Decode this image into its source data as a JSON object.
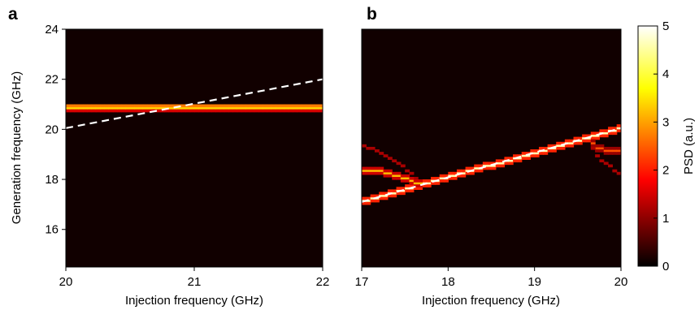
{
  "chart_data": [
    {
      "panel_label": "a",
      "type": "heatmap",
      "xlabel": "Injection frequency (GHz)",
      "ylabel": "Generation frequency (GHz)",
      "xlim": [
        20,
        22
      ],
      "ylim": [
        14.5,
        24
      ],
      "x_ticks": [
        "20",
        "21",
        "22"
      ],
      "y_ticks": [
        "16",
        "18",
        "20",
        "22",
        "24"
      ],
      "background_color": "#110000",
      "generation_line": {
        "y": 20.85,
        "psd": 3.4,
        "color": "#ff2a10"
      },
      "dashed_line": {
        "x": [
          20,
          22
        ],
        "y": [
          20.05,
          22.0
        ],
        "color": "#ffffff",
        "style": "dashed"
      }
    },
    {
      "panel_label": "b",
      "type": "heatmap",
      "xlabel": "Injection frequency (GHz)",
      "xlim": [
        17,
        20
      ],
      "ylim": [
        14.5,
        24
      ],
      "x_ticks": [
        "17",
        "18",
        "19",
        "20"
      ],
      "background_color": "#110000",
      "locked_branch": {
        "x": [
          17.0,
          20.0
        ],
        "y": [
          17.1,
          20.05
        ],
        "psd": 4.6
      },
      "side_branches": [
        {
          "x": [
            17.0,
            17.1,
            17.2,
            17.3,
            17.4,
            17.5,
            17.6,
            17.68
          ],
          "y": [
            19.35,
            19.25,
            19.1,
            18.95,
            18.7,
            18.45,
            18.2,
            17.8
          ],
          "psd": 1.2
        },
        {
          "x": [
            17.0,
            17.1,
            17.2,
            17.3,
            17.4,
            17.5,
            17.6,
            17.68
          ],
          "y": [
            18.4,
            18.38,
            18.33,
            18.25,
            18.15,
            18.05,
            17.92,
            17.8
          ],
          "psd": 3.2
        },
        {
          "x": [
            19.65,
            19.72,
            19.8,
            19.9,
            20.0
          ],
          "y": [
            19.5,
            19.3,
            19.2,
            19.15,
            19.1
          ],
          "psd": 2.4
        },
        {
          "x": [
            19.65,
            19.7,
            19.76,
            19.84,
            19.92,
            20.0
          ],
          "y": [
            19.5,
            19.1,
            18.8,
            18.6,
            18.4,
            18.25
          ],
          "psd": 1.2
        }
      ],
      "dashed_line": {
        "x": [
          17.0,
          20.0
        ],
        "y": [
          17.1,
          20.05
        ],
        "color": "#ffffff",
        "style": "dashed"
      }
    }
  ],
  "colorbar": {
    "label": "PSD (a.u.)",
    "range": [
      0,
      5
    ],
    "ticks": [
      "0",
      "1",
      "2",
      "3",
      "4",
      "5"
    ],
    "colormap": "hot"
  }
}
